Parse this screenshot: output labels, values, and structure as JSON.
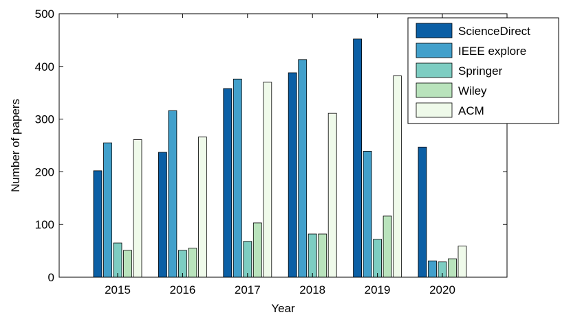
{
  "chart_data": {
    "type": "bar",
    "title": "",
    "xlabel": "Year",
    "ylabel": "Number of papers",
    "categories": [
      "2015",
      "2016",
      "2017",
      "2018",
      "2019",
      "2020"
    ],
    "ylim": [
      0,
      500
    ],
    "yticks": [
      "0",
      "100",
      "200",
      "300",
      "400",
      "500"
    ],
    "grid": false,
    "legend_position": "top-right",
    "series": [
      {
        "name": "ScienceDirect",
        "color": "#0b5fa5",
        "values": [
          202,
          237,
          358,
          388,
          452,
          247
        ]
      },
      {
        "name": "IEEE explore",
        "color": "#42a0cb",
        "values": [
          255,
          316,
          376,
          413,
          239,
          31
        ]
      },
      {
        "name": "Springer",
        "color": "#7dcdc2",
        "values": [
          65,
          51,
          68,
          82,
          72,
          29
        ]
      },
      {
        "name": "Wiley",
        "color": "#b9e3bc",
        "values": [
          51,
          55,
          103,
          82,
          116,
          35
        ]
      },
      {
        "name": "ACM",
        "color": "#effaea",
        "values": [
          261,
          266,
          370,
          311,
          382,
          59
        ]
      }
    ]
  }
}
